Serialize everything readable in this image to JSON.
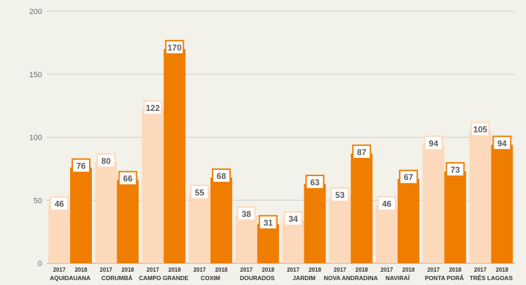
{
  "chart_data": {
    "type": "bar",
    "title": "",
    "xlabel": "",
    "ylabel": "",
    "ylim": [
      0,
      200
    ],
    "yticks": [
      0,
      50,
      100,
      150,
      200
    ],
    "grid": true,
    "categories": [
      "AQUIDAUANA",
      "CORUMBÁ",
      "CAMPO GRANDE",
      "COXIM",
      "DOURADOS",
      "JARDIM",
      "NOVA ANDRADINA",
      "NAVIRAÍ",
      "PONTA PORÃ",
      "TRÊS LAGOAS"
    ],
    "series": [
      {
        "name": "2017",
        "color": "#fdd9bb",
        "values": [
          46,
          80,
          122,
          55,
          38,
          34,
          53,
          46,
          94,
          105
        ]
      },
      {
        "name": "2018",
        "color": "#ef7d00",
        "values": [
          76,
          66,
          170,
          68,
          31,
          63,
          87,
          67,
          73,
          94
        ]
      }
    ]
  },
  "colors": {
    "background": "#f2f1ea",
    "grid": "#cfcfc7",
    "axis": "#9a9a9a",
    "label_border_2018": "#ef7d00",
    "label_border_2017": "#fdd9bb"
  }
}
